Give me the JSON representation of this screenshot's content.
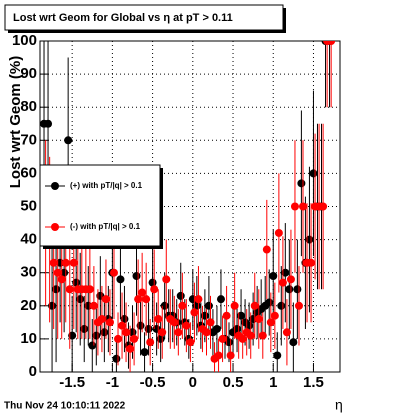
{
  "chart_data": {
    "type": "scatter",
    "title": "Lost wrt Geom for Global vs  η at pT > 0.11",
    "ylabel": "Lost wrt Geom (%)",
    "xlabel": "η",
    "footer": "Thu Nov 24 10:10:11 2022",
    "xlim": [
      -1.9,
      1.83
    ],
    "ylim": [
      0,
      100
    ],
    "xticks": [
      -1.5,
      -1,
      -0.5,
      0,
      0.5,
      1,
      1.5
    ],
    "yticks": [
      0,
      10,
      20,
      30,
      40,
      50,
      60,
      70,
      80,
      90,
      100
    ],
    "grid": true,
    "legend": "left",
    "series": [
      {
        "name": "(+) with pT/|q| > 0.1",
        "color": "#000000",
        "x": [
          -1.85,
          -1.8,
          -1.75,
          -1.7,
          -1.65,
          -1.6,
          -1.55,
          -1.5,
          -1.45,
          -1.4,
          -1.35,
          -1.3,
          -1.25,
          -1.2,
          -1.15,
          -1.1,
          -1.05,
          -1,
          -0.95,
          -0.9,
          -0.85,
          -0.8,
          -0.75,
          -0.7,
          -0.65,
          -0.6,
          -0.55,
          -0.5,
          -0.45,
          -0.4,
          -0.35,
          -0.3,
          -0.25,
          -0.2,
          -0.15,
          -0.1,
          -0.05,
          0,
          0.05,
          0.1,
          0.15,
          0.2,
          0.25,
          0.3,
          0.35,
          0.4,
          0.45,
          0.5,
          0.55,
          0.6,
          0.65,
          0.7,
          0.75,
          0.8,
          0.85,
          0.9,
          0.95,
          1,
          1.05,
          1.1,
          1.15,
          1.2,
          1.25,
          1.3,
          1.35,
          1.4,
          1.45,
          1.5,
          1.55,
          1.6,
          1.65,
          1.7
        ],
        "values": [
          75,
          75,
          20,
          25,
          33,
          30,
          70,
          11,
          27,
          22,
          13,
          20,
          8,
          11,
          23,
          12,
          16,
          30,
          4,
          28,
          16,
          8,
          12,
          29,
          14,
          6,
          13,
          27,
          13,
          10,
          20,
          17,
          17,
          15,
          23,
          15,
          10,
          22,
          20,
          14,
          17,
          20,
          12,
          13,
          22,
          10,
          9,
          12,
          13,
          17,
          15,
          14,
          16,
          18,
          19,
          20,
          21,
          29,
          5,
          20,
          30,
          25,
          9,
          25,
          57,
          33,
          40,
          60,
          50,
          50,
          100,
          100
        ],
        "errors": [
          25,
          25,
          20,
          22,
          18,
          18,
          25,
          12,
          15,
          14,
          10,
          12,
          8,
          9,
          12,
          9,
          10,
          14,
          6,
          12,
          10,
          7,
          8,
          12,
          9,
          6,
          8,
          12,
          8,
          7,
          10,
          8,
          8,
          7,
          10,
          7,
          6,
          9,
          9,
          7,
          8,
          9,
          7,
          7,
          9,
          6,
          6,
          7,
          7,
          8,
          7,
          7,
          8,
          8,
          9,
          9,
          10,
          14,
          7,
          12,
          15,
          15,
          12,
          15,
          22,
          20,
          22,
          25,
          25,
          25,
          20,
          20
        ]
      },
      {
        "name": "(-) with pT/|q| > 0.1",
        "color": "#ff0000",
        "x": [
          -1.83,
          -1.78,
          -1.73,
          -1.68,
          -1.63,
          -1.58,
          -1.53,
          -1.48,
          -1.43,
          -1.38,
          -1.33,
          -1.28,
          -1.23,
          -1.18,
          -1.13,
          -1.08,
          -1.03,
          -0.98,
          -0.93,
          -0.88,
          -0.83,
          -0.78,
          -0.73,
          -0.68,
          -0.63,
          -0.58,
          -0.53,
          -0.48,
          -0.43,
          -0.38,
          -0.33,
          -0.28,
          -0.23,
          -0.18,
          -0.13,
          -0.08,
          -0.03,
          0.02,
          0.07,
          0.12,
          0.17,
          0.22,
          0.27,
          0.32,
          0.37,
          0.42,
          0.47,
          0.52,
          0.57,
          0.62,
          0.67,
          0.72,
          0.77,
          0.82,
          0.87,
          0.92,
          0.97,
          1.02,
          1.07,
          1.12,
          1.17,
          1.22,
          1.27,
          1.32,
          1.37,
          1.42,
          1.47,
          1.52,
          1.57,
          1.62,
          1.67,
          1.72
        ],
        "values": [
          45,
          40,
          33,
          30,
          28,
          33,
          25,
          33,
          25,
          25,
          25,
          25,
          20,
          15,
          16,
          22,
          15,
          30,
          10,
          14,
          12,
          7,
          10,
          22,
          24,
          22,
          9,
          25,
          16,
          12,
          28,
          16,
          15,
          12,
          20,
          14,
          9,
          18,
          22,
          13,
          12,
          15,
          4,
          5,
          10,
          17,
          5,
          20,
          11,
          10,
          12,
          11,
          20,
          16,
          11,
          37,
          15,
          17,
          42,
          27,
          12,
          28,
          50,
          20,
          50,
          33,
          33,
          50,
          50,
          50,
          100,
          100
        ],
        "errors": [
          25,
          25,
          20,
          20,
          18,
          18,
          18,
          20,
          15,
          15,
          15,
          15,
          12,
          10,
          10,
          12,
          10,
          14,
          8,
          10,
          9,
          7,
          8,
          12,
          12,
          11,
          7,
          12,
          9,
          8,
          12,
          9,
          8,
          7,
          10,
          8,
          6,
          9,
          10,
          7,
          7,
          8,
          5,
          5,
          7,
          9,
          5,
          10,
          7,
          6,
          7,
          7,
          10,
          9,
          7,
          15,
          9,
          10,
          18,
          14,
          10,
          15,
          20,
          12,
          20,
          18,
          18,
          22,
          25,
          25,
          20,
          20
        ]
      }
    ]
  }
}
